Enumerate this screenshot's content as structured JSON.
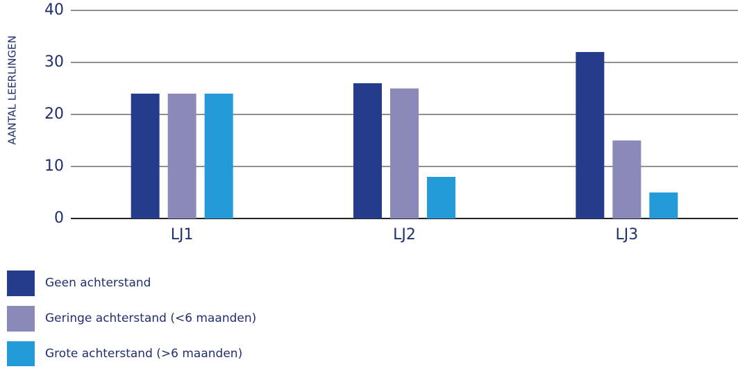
{
  "chart_data": {
    "type": "bar",
    "y_label": "AANTAL LEERLINGEN",
    "categories": [
      "LJ1",
      "LJ2",
      "LJ3"
    ],
    "series": [
      {
        "name": "Geen achterstand",
        "color": "#253c8c",
        "values": [
          24,
          26,
          32
        ]
      },
      {
        "name": "Geringe achterstand (<6 maanden)",
        "color": "#8a89ba",
        "values": [
          24,
          25,
          15
        ]
      },
      {
        "name": "Grote achterstand (>6 maanden)",
        "color": "#249bd8",
        "values": [
          24,
          8,
          5
        ]
      }
    ],
    "ylim": [
      0,
      40
    ],
    "yticks": [
      0,
      10,
      20,
      30,
      40
    ],
    "grid": true,
    "legend": "bottom-left"
  }
}
